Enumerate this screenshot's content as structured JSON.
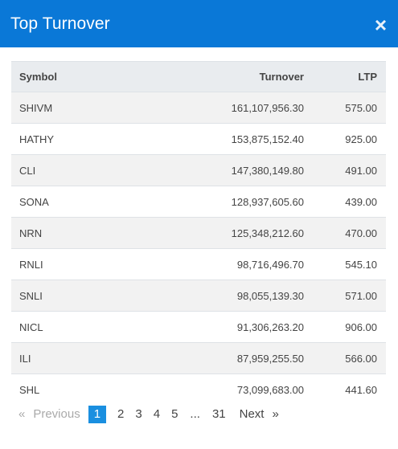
{
  "modal": {
    "title": "Top Turnover",
    "close_glyph": "×"
  },
  "table": {
    "headers": {
      "symbol": "Symbol",
      "turnover": "Turnover",
      "ltp": "LTP"
    },
    "rows": [
      {
        "symbol": "SHIVM",
        "turnover": "161,107,956.30",
        "ltp": "575.00"
      },
      {
        "symbol": "HATHY",
        "turnover": "153,875,152.40",
        "ltp": "925.00"
      },
      {
        "symbol": "CLI",
        "turnover": "147,380,149.80",
        "ltp": "491.00"
      },
      {
        "symbol": "SONA",
        "turnover": "128,937,605.60",
        "ltp": "439.00"
      },
      {
        "symbol": "NRN",
        "turnover": "125,348,212.60",
        "ltp": "470.00"
      },
      {
        "symbol": "RNLI",
        "turnover": "98,716,496.70",
        "ltp": "545.10"
      },
      {
        "symbol": "SNLI",
        "turnover": "98,055,139.30",
        "ltp": "571.00"
      },
      {
        "symbol": "NICL",
        "turnover": "91,306,263.20",
        "ltp": "906.00"
      },
      {
        "symbol": "ILI",
        "turnover": "87,959,255.50",
        "ltp": "566.00"
      },
      {
        "symbol": "SHL",
        "turnover": "73,099,683.00",
        "ltp": "441.60"
      }
    ]
  },
  "pagination": {
    "prev_arrow": "«",
    "prev_label": "Previous",
    "pages": [
      "1",
      "2",
      "3",
      "4",
      "5"
    ],
    "ellipsis": "...",
    "last_page": "31",
    "next_label": "Next",
    "next_arrow": "»",
    "current_page": "1"
  },
  "colors": {
    "header_bg": "#0a78d7",
    "active_page_bg": "#1a8fe0"
  }
}
